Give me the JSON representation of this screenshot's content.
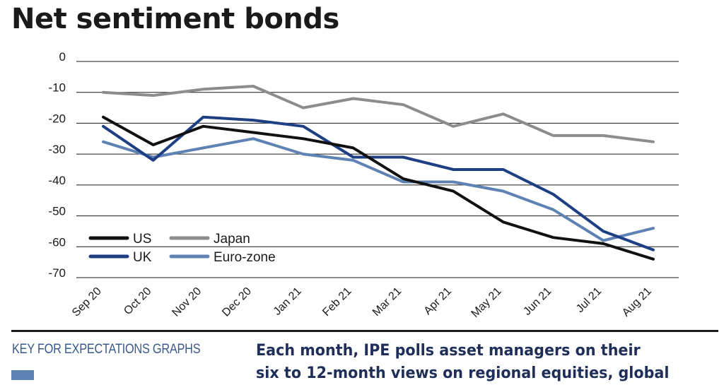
{
  "title": "Net sentiment bonds",
  "chart_data": {
    "type": "line",
    "title": "Net sentiment bonds",
    "xlabel": "",
    "ylabel": "",
    "ylim": [
      -70,
      0
    ],
    "yticks": [
      0,
      -10,
      -20,
      -30,
      -40,
      -50,
      -60,
      -70
    ],
    "grid": true,
    "legend_position": "bottom-left",
    "categories": [
      "Sep 20",
      "Oct 20",
      "Nov 20",
      "Dec 20",
      "Jan 21",
      "Feb 21",
      "Mar 21",
      "Apr 21",
      "May 21",
      "Jun 21",
      "Jul 21",
      "Aug 21"
    ],
    "series": [
      {
        "name": "US",
        "color": "#111111",
        "values": [
          -18,
          -27,
          -21,
          -23,
          -25,
          -28,
          -38,
          -42,
          -52,
          -57,
          -59,
          -64
        ]
      },
      {
        "name": "Japan",
        "color": "#8c8c8c",
        "values": [
          -10,
          -11,
          -9,
          -8,
          -15,
          -12,
          -14,
          -21,
          -17,
          -24,
          -24,
          -26
        ]
      },
      {
        "name": "UK",
        "color": "#1f3f85",
        "values": [
          -21,
          -32,
          -18,
          -19,
          -21,
          -31,
          -31,
          -35,
          -35,
          -43,
          -55,
          -61
        ]
      },
      {
        "name": "Euro-zone",
        "color": "#5f82b5",
        "values": [
          -26,
          -31,
          -28,
          -25,
          -30,
          -32,
          -39,
          -39,
          -42,
          -48,
          -58,
          -54
        ]
      }
    ]
  },
  "footer": {
    "key_title": "KEY FOR EXPECTATIONS GRAPHS",
    "key_swatch_color": "#5f82b5",
    "intro_line1": "Each month, IPE polls asset managers on their",
    "intro_line2": "six to 12-month views on regional equities, global"
  }
}
